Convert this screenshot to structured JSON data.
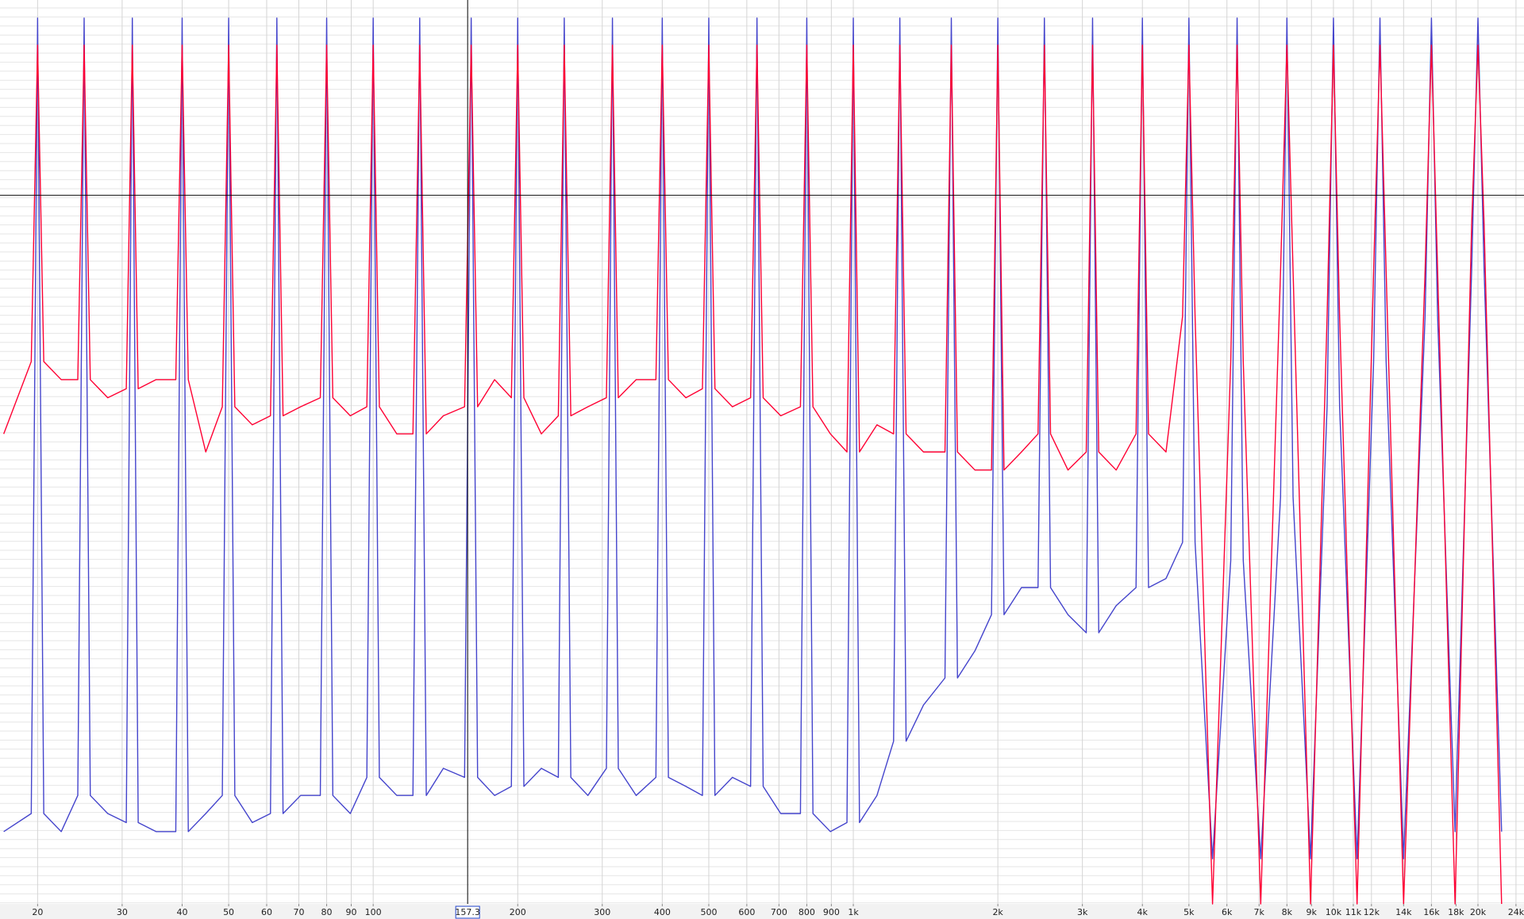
{
  "chart_data": {
    "type": "line",
    "xscale": "log",
    "xlim": [
      16.7,
      24940
    ],
    "ylim": [
      0,
      100
    ],
    "grid": true,
    "xticks": [
      20,
      30,
      40,
      50,
      60,
      70,
      80,
      90,
      100,
      200,
      300,
      400,
      500,
      600,
      700,
      800,
      900,
      {
        "value": 1000,
        "label": "1k"
      },
      {
        "value": 2000,
        "label": "2k"
      },
      {
        "value": 3000,
        "label": "3k"
      },
      {
        "value": 4000,
        "label": "4k"
      },
      {
        "value": 5000,
        "label": "5k"
      },
      {
        "value": 6000,
        "label": "6k"
      },
      {
        "value": 7000,
        "label": "7k"
      },
      {
        "value": 8000,
        "label": "8k"
      },
      {
        "value": 9000,
        "label": "9k"
      },
      {
        "value": 10000,
        "label": "10k"
      },
      {
        "value": 11000,
        "label": "11k"
      },
      {
        "value": 12000,
        "label": "12k"
      },
      {
        "value": 14000,
        "label": "14k"
      },
      {
        "value": 16000,
        "label": "16k"
      },
      {
        "value": 18000,
        "label": "18k"
      },
      {
        "value": 20000,
        "label": "20k"
      },
      {
        "value": 24000,
        "label": "24k"
      }
    ],
    "cursor_x": {
      "value": 157.3,
      "label": "157.3"
    },
    "cursor_level": 78.4,
    "x": [
      17,
      19.4,
      20,
      20.6,
      22.4,
      24.25,
      25,
      25.75,
      28,
      30.6,
      31.5,
      32.4,
      35.3,
      38.8,
      40,
      41.2,
      44.8,
      48.5,
      50,
      51.5,
      56,
      61.1,
      63,
      64.9,
      70.6,
      77.6,
      80,
      82.4,
      89.6,
      97,
      100,
      103,
      112,
      121,
      125,
      129,
      140,
      155,
      160,
      165,
      179,
      194,
      200,
      206,
      224,
      243,
      250,
      258,
      280,
      306,
      315,
      324,
      353,
      388,
      400,
      412,
      448,
      485,
      500,
      515,
      560,
      611,
      630,
      649,
      706,
      776,
      800,
      824,
      896,
      970,
      1000,
      1030,
      1120,
      1213,
      1250,
      1288,
      1400,
      1552,
      1600,
      1648,
      1792,
      1940,
      2000,
      2060,
      2240,
      2425,
      2500,
      2575,
      2800,
      3056,
      3150,
      3245,
      3528,
      3880,
      4000,
      4120,
      4480,
      4850,
      5000,
      5150,
      5600,
      6111,
      6300,
      6489,
      7056,
      7760,
      8000,
      8240,
      8960,
      9700,
      10000,
      10300,
      11200,
      12125,
      12500,
      12875,
      14000,
      15520,
      16000,
      16480,
      17920,
      19400,
      20000,
      20600,
      22400
    ],
    "series": [
      {
        "color": "#4444cc",
        "values": [
          8,
          10,
          98,
          10,
          8,
          12,
          98,
          12,
          10,
          9,
          98,
          9,
          8,
          8,
          98,
          8,
          10,
          12,
          98,
          12,
          9,
          10,
          98,
          10,
          12,
          12,
          98,
          12,
          10,
          14,
          98,
          14,
          12,
          12,
          98,
          12,
          15,
          14,
          98,
          14,
          12,
          13,
          98,
          13,
          15,
          14,
          98,
          14,
          12,
          15,
          98,
          15,
          12,
          14,
          98,
          14,
          13,
          12,
          98,
          12,
          14,
          13,
          98,
          13,
          10,
          10,
          98,
          10,
          8,
          9,
          98,
          9,
          12,
          18,
          98,
          18,
          22,
          25,
          98,
          25,
          28,
          32,
          98,
          32,
          35,
          35,
          98,
          35,
          32,
          30,
          98,
          30,
          33,
          35,
          98,
          35,
          36,
          40,
          98,
          40,
          5,
          38,
          98,
          38,
          5,
          45,
          98,
          45,
          5,
          55,
          98,
          55,
          5,
          60,
          98,
          60,
          5,
          65,
          98,
          65,
          8,
          70,
          98,
          70,
          8
        ]
      },
      {
        "color": "#ff0033",
        "values": [
          52,
          60,
          95,
          60,
          58,
          58,
          95,
          58,
          56,
          57,
          95,
          57,
          58,
          58,
          95,
          58,
          50,
          55,
          95,
          55,
          53,
          54,
          95,
          54,
          55,
          56,
          95,
          56,
          54,
          55,
          95,
          55,
          52,
          52,
          95,
          52,
          54,
          55,
          95,
          55,
          58,
          56,
          95,
          56,
          52,
          54,
          95,
          54,
          55,
          56,
          95,
          56,
          58,
          58,
          95,
          58,
          56,
          57,
          95,
          57,
          55,
          56,
          95,
          56,
          54,
          55,
          95,
          55,
          52,
          50,
          95,
          50,
          53,
          52,
          95,
          52,
          50,
          50,
          95,
          50,
          48,
          48,
          95,
          48,
          50,
          52,
          95,
          52,
          48,
          50,
          95,
          50,
          48,
          52,
          95,
          52,
          50,
          65,
          95,
          65,
          0,
          60,
          95,
          60,
          0,
          70,
          95,
          70,
          0,
          65,
          95,
          65,
          0,
          70,
          95,
          70,
          0,
          70,
          95,
          70,
          0,
          75,
          95,
          75,
          0
        ]
      }
    ]
  }
}
